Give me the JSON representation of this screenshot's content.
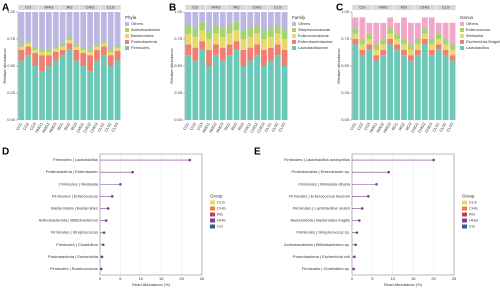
{
  "chart_data": [
    {
      "type": "stacked_bar",
      "panel": "A",
      "ylabel": "Relative abundance",
      "legend_title": "Phyla",
      "groups": [
        "CG",
        "HHG",
        "RG",
        "CHG",
        "CLS"
      ],
      "categories": [
        "CG1",
        "CG2",
        "CG3",
        "HHG1",
        "HHG2",
        "HHG3",
        "RG1",
        "RG2",
        "RG3",
        "CHG1",
        "CHG2",
        "CHG3",
        "CLS1",
        "CLS2",
        "CLS3"
      ],
      "ylim": [
        0,
        1
      ],
      "yticks": [
        {
          "value": 0,
          "label": "0.00"
        },
        {
          "value": 0.25,
          "label": "0.25"
        },
        {
          "value": 0.5,
          "label": "0.50"
        },
        {
          "value": 0.75,
          "label": "0.75"
        },
        {
          "value": 1,
          "label": "1.00"
        }
      ],
      "series": [
        {
          "name": "Firmicutes",
          "color": "#6cc9b8",
          "values": [
            0.55,
            0.6,
            0.5,
            0.45,
            0.5,
            0.55,
            0.6,
            0.65,
            0.55,
            0.5,
            0.45,
            0.55,
            0.6,
            0.5,
            0.55
          ]
        },
        {
          "name": "Proteobacteria",
          "color": "#f07f72",
          "values": [
            0.1,
            0.08,
            0.12,
            0.15,
            0.1,
            0.08,
            0.05,
            0.06,
            0.1,
            0.12,
            0.15,
            0.1,
            0.08,
            0.1,
            0.09
          ]
        },
        {
          "name": "Bacteroidota",
          "color": "#e9d86d",
          "values": [
            0.03,
            0.03,
            0.03,
            0.03,
            0.03,
            0.03,
            0.03,
            0.03,
            0.03,
            0.03,
            0.03,
            0.03,
            0.03,
            0.03,
            0.03
          ]
        },
        {
          "name": "Actinobacteriota",
          "color": "#a4d46e",
          "values": [
            0.02,
            0.02,
            0.02,
            0.02,
            0.02,
            0.02,
            0.02,
            0.02,
            0.02,
            0.02,
            0.02,
            0.02,
            0.02,
            0.02,
            0.02
          ]
        },
        {
          "name": "Others",
          "color": "#bcb6e2",
          "values": [
            0.3,
            0.27,
            0.33,
            0.35,
            0.35,
            0.32,
            0.3,
            0.24,
            0.3,
            0.33,
            0.35,
            0.3,
            0.27,
            0.35,
            0.31
          ]
        }
      ]
    },
    {
      "type": "stacked_bar",
      "panel": "B",
      "ylabel": "Relative abundance",
      "legend_title": "Family",
      "groups": [
        "CG",
        "HHG",
        "RG",
        "CHG",
        "CLS"
      ],
      "categories": [
        "CG1",
        "CG2",
        "CG3",
        "HHG1",
        "HHG2",
        "HHG3",
        "RG1",
        "RG2",
        "RG3",
        "CHG1",
        "CHG2",
        "CHG3",
        "CLS1",
        "CLS2",
        "CLS3"
      ],
      "ylim": [
        0,
        1
      ],
      "yticks": [
        {
          "value": 0,
          "label": "0.00"
        },
        {
          "value": 0.25,
          "label": "0.25"
        },
        {
          "value": 0.5,
          "label": "0.50"
        },
        {
          "value": 0.75,
          "label": "0.75"
        },
        {
          "value": 1,
          "label": "1.00"
        }
      ],
      "series": [
        {
          "name": "Lactobacillaceae",
          "color": "#6cc9b8",
          "values": [
            0.6,
            0.55,
            0.65,
            0.5,
            0.6,
            0.55,
            0.6,
            0.65,
            0.5,
            0.55,
            0.6,
            0.5,
            0.55,
            0.6,
            0.5
          ]
        },
        {
          "name": "Enterobacteriaceae",
          "color": "#f07f72",
          "values": [
            0.1,
            0.12,
            0.08,
            0.15,
            0.1,
            0.12,
            0.1,
            0.08,
            0.15,
            0.12,
            0.1,
            0.15,
            0.12,
            0.1,
            0.15
          ]
        },
        {
          "name": "Enterococcaceae",
          "color": "#e9d86d",
          "values": [
            0.1,
            0.1,
            0.1,
            0.1,
            0.1,
            0.1,
            0.1,
            0.1,
            0.1,
            0.1,
            0.1,
            0.1,
            0.1,
            0.1,
            0.1
          ]
        },
        {
          "name": "Streptococcaceae",
          "color": "#a4d46e",
          "values": [
            0.08,
            0.08,
            0.08,
            0.08,
            0.08,
            0.08,
            0.08,
            0.08,
            0.08,
            0.08,
            0.08,
            0.08,
            0.08,
            0.08,
            0.08
          ]
        },
        {
          "name": "Others",
          "color": "#bcb6e2",
          "values": [
            0.12,
            0.15,
            0.09,
            0.17,
            0.12,
            0.15,
            0.12,
            0.09,
            0.17,
            0.15,
            0.12,
            0.17,
            0.15,
            0.12,
            0.17
          ]
        }
      ]
    },
    {
      "type": "stacked_bar",
      "panel": "C",
      "ylabel": "Relative abundance",
      "legend_title": "Genus",
      "groups": [
        "CG",
        "HHG",
        "RG",
        "CHG",
        "CLS"
      ],
      "categories": [
        "CG1",
        "CG2",
        "CG3",
        "HHG1",
        "HHG2",
        "HHG3",
        "RG1",
        "RG2",
        "RG3",
        "CHG1",
        "CHG2",
        "CHG3",
        "CLS1",
        "CLS2",
        "CLS3"
      ],
      "ylim": [
        0,
        1
      ],
      "yticks": [
        {
          "value": 0,
          "label": "0.00"
        },
        {
          "value": 0.25,
          "label": "0.25"
        },
        {
          "value": 0.5,
          "label": "0.50"
        },
        {
          "value": 0.75,
          "label": "0.75"
        },
        {
          "value": 1,
          "label": "1.00"
        }
      ],
      "series": [
        {
          "name": "Lactobacillus",
          "color": "#6cc9b8",
          "values": [
            0.7,
            0.6,
            0.65,
            0.55,
            0.6,
            0.7,
            0.65,
            0.6,
            0.55,
            0.6,
            0.7,
            0.6,
            0.65,
            0.6,
            0.55
          ]
        },
        {
          "name": "Escherichia-Shigella",
          "color": "#f07f72",
          "values": [
            0.05,
            0.05,
            0.05,
            0.05,
            0.05,
            0.05,
            0.05,
            0.05,
            0.05,
            0.05,
            0.05,
            0.05,
            0.05,
            0.05,
            0.05
          ]
        },
        {
          "name": "Weissella",
          "color": "#e9d86d",
          "values": [
            0.05,
            0.05,
            0.05,
            0.05,
            0.05,
            0.05,
            0.05,
            0.05,
            0.05,
            0.05,
            0.05,
            0.05,
            0.05,
            0.05,
            0.05
          ]
        },
        {
          "name": "Enterococcus",
          "color": "#a4d46e",
          "values": [
            0.05,
            0.05,
            0.05,
            0.05,
            0.05,
            0.05,
            0.05,
            0.05,
            0.05,
            0.05,
            0.05,
            0.05,
            0.05,
            0.05,
            0.05
          ]
        },
        {
          "name": "Others",
          "color": "#f3a7c8",
          "values": [
            0.1,
            0.2,
            0.1,
            0.2,
            0.15,
            0.1,
            0.1,
            0.2,
            0.2,
            0.15,
            0.1,
            0.2,
            0.1,
            0.15,
            0.2
          ]
        }
      ]
    },
    {
      "type": "lollipop",
      "panel": "D",
      "xlabel": "Read Abundance (%)",
      "legend_title": "Group",
      "legend": [
        {
          "name": "CLS",
          "color": "#e9d86d"
        },
        {
          "name": "CHG",
          "color": "#e8833a"
        },
        {
          "name": "RG",
          "color": "#c23b5a"
        },
        {
          "name": "HHG",
          "color": "#7a3f8f"
        },
        {
          "name": "CG",
          "color": "#2f5f8f"
        }
      ],
      "color": "#7a3f8f",
      "categories": [
        "Firmicutes | Lactobacillus",
        "Proteobacteria | Enterobacter",
        "Firmicutes | Weissella",
        "Firmicutes | Enterococcus",
        "Bacteroidota | Bacteroides",
        "Actinobacteriota | Bifidobacterium",
        "Firmicutes | Streptococcus",
        "Firmicutes | Clostridium",
        "Proteobacteria | Escherichia",
        "Firmicutes | Ruminococcus"
      ],
      "values": [
        22,
        8,
        5,
        3,
        2,
        1.5,
        1,
        0.8,
        0.5,
        0.3
      ],
      "xlim": [
        0,
        25
      ],
      "xticks": [
        0,
        5,
        10,
        15,
        20,
        25
      ]
    },
    {
      "type": "lollipop",
      "panel": "E",
      "xlabel": "Read Abundance (%)",
      "legend_title": "Group",
      "legend": [
        {
          "name": "CLS",
          "color": "#e9d86d"
        },
        {
          "name": "CHG",
          "color": "#e8833a"
        },
        {
          "name": "RG",
          "color": "#c23b5a"
        },
        {
          "name": "HHG",
          "color": "#7a3f8f"
        },
        {
          "name": "CG",
          "color": "#2f5f8f"
        }
      ],
      "color": "#7a3f8f",
      "categories": [
        "Firmicutes | Lactobacillus acidophilus",
        "Proteobacteria | Enterobacter sp.",
        "Firmicutes | Weissella cibaria",
        "Firmicutes | Enterococcus faecium",
        "Firmicutes | Lactobacillus reuteri",
        "Bacteroidota | Bacteroides fragilis",
        "Firmicutes | Streptococcus sp.",
        "Actinobacteriota | Bifidobacterium sp.",
        "Proteobacteria | Escherichia coli",
        "Firmicutes | Clostridium sp."
      ],
      "values": [
        20,
        9,
        6,
        4,
        2.5,
        1.8,
        1.2,
        0.9,
        0.6,
        0.4
      ],
      "xlim": [
        0,
        25
      ],
      "xticks": [
        0,
        5,
        10,
        15,
        20,
        25
      ]
    }
  ]
}
